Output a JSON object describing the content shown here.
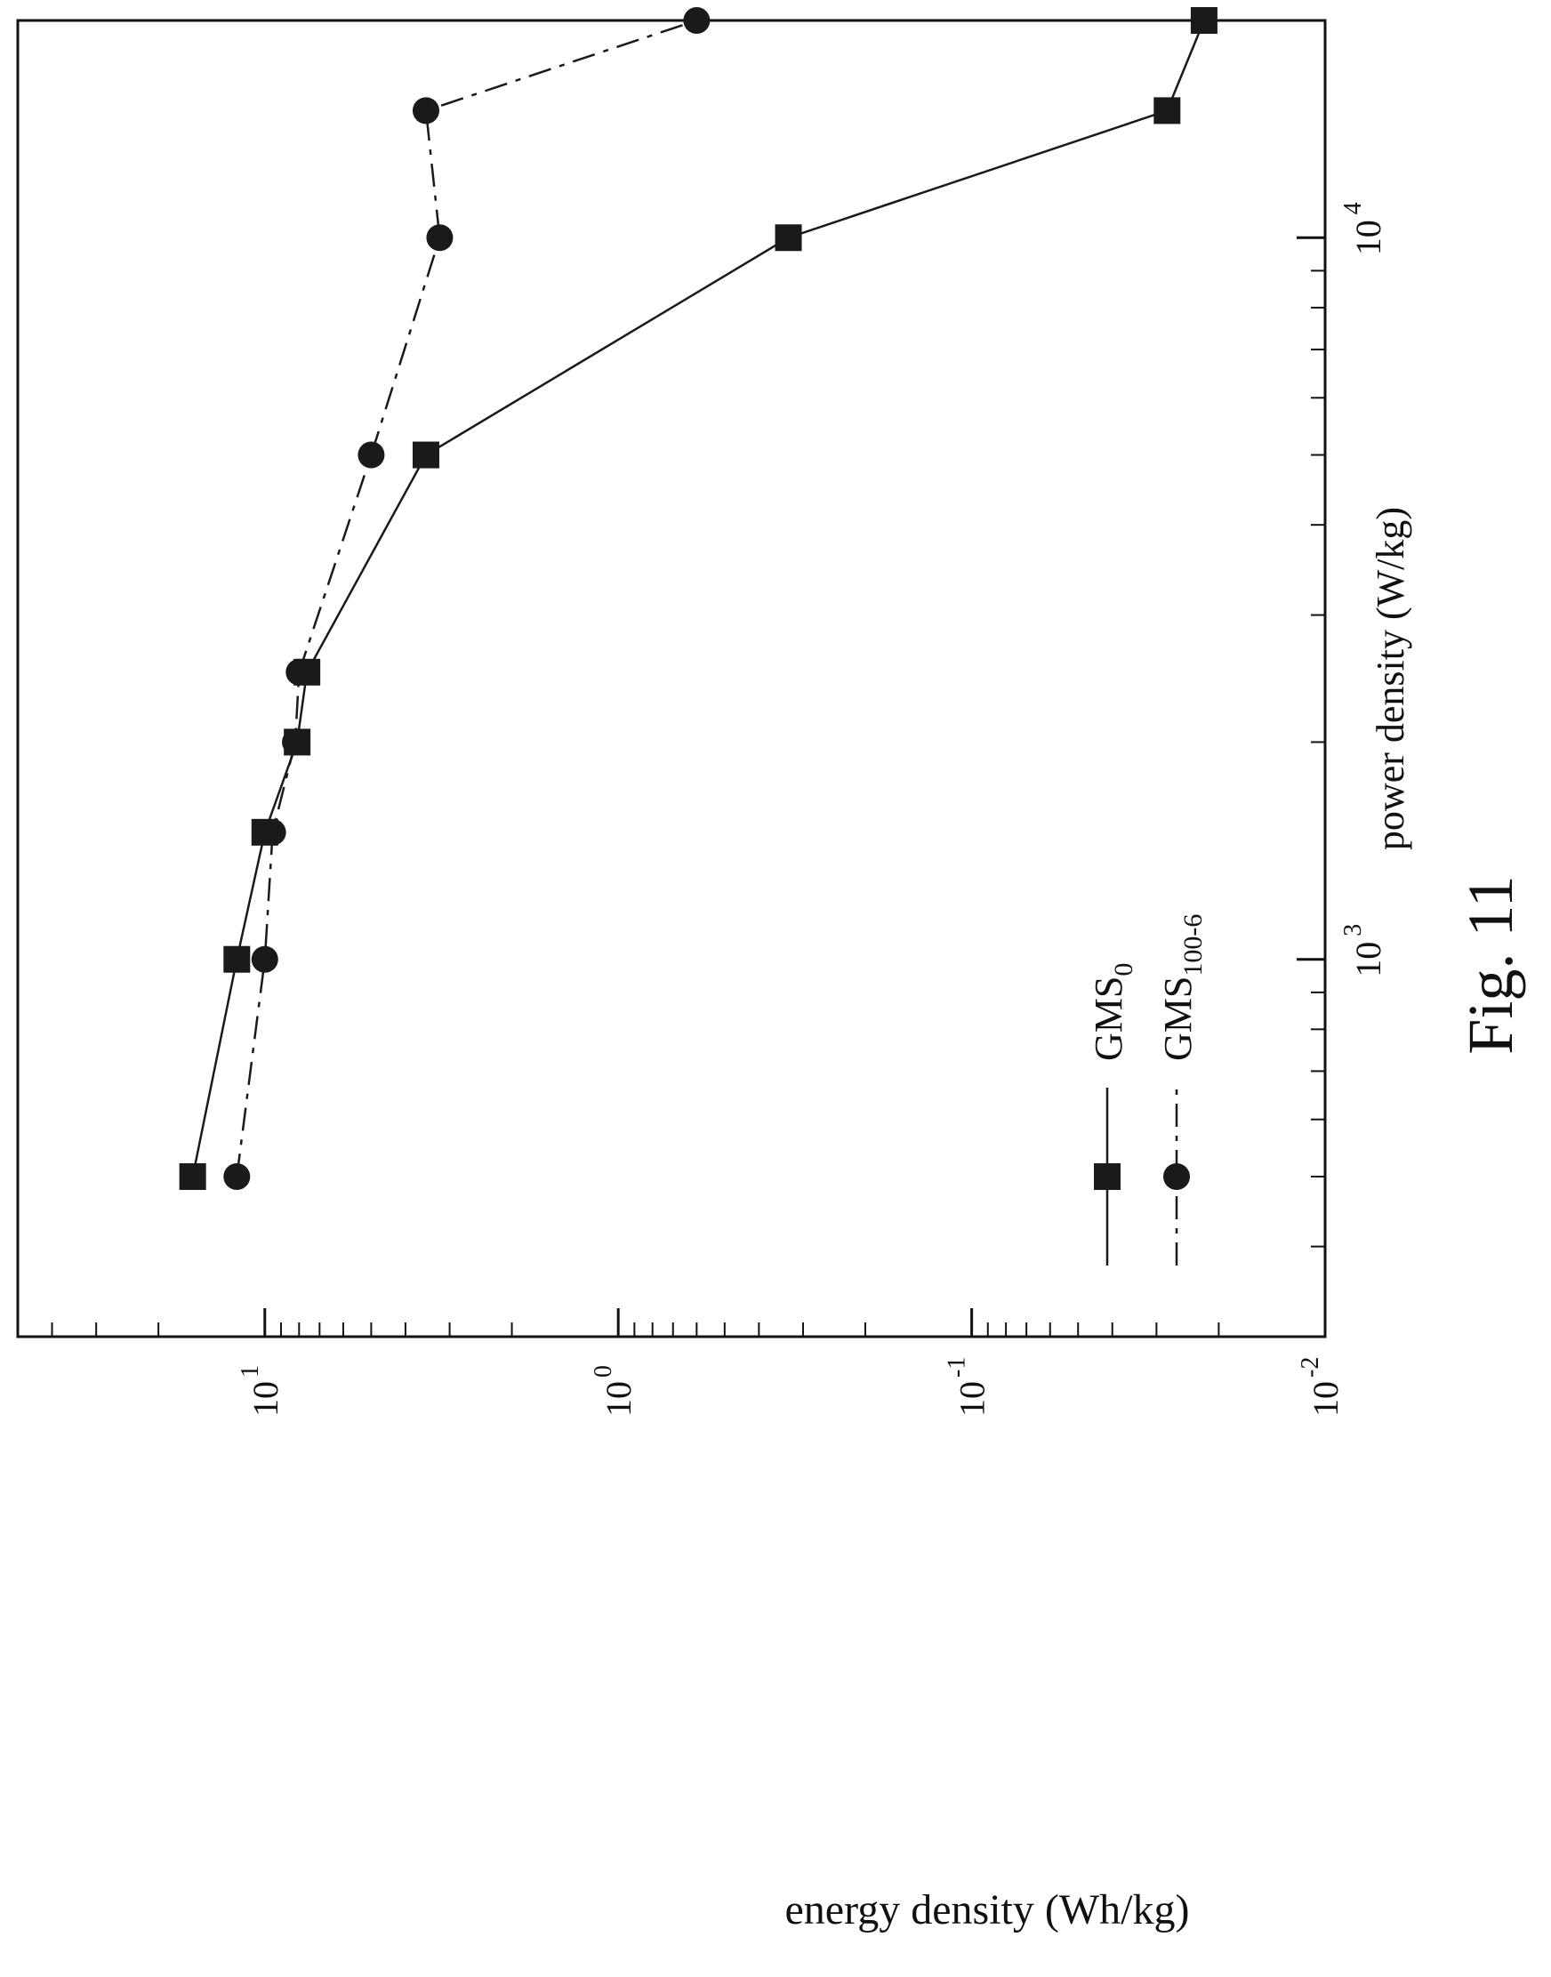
{
  "figure": {
    "caption": "Fig. 11"
  },
  "chart_data": {
    "type": "line",
    "title": "",
    "xlabel": "power density (W/kg)",
    "ylabel": "energy density (Wh/kg)",
    "x_scale": "log",
    "y_scale": "log",
    "xlim": [
      300,
      20000
    ],
    "ylim": [
      0.01,
      50
    ],
    "x_ticks": [
      {
        "value": 1000,
        "base": "10",
        "exp": "3"
      },
      {
        "value": 10000,
        "base": "10",
        "exp": "4"
      }
    ],
    "y_ticks": [
      {
        "value": 10,
        "base": "10",
        "exp": "1"
      },
      {
        "value": 1,
        "base": "10",
        "exp": "0"
      },
      {
        "value": 0.1,
        "base": "10",
        "exp": "-1"
      },
      {
        "value": 0.01,
        "base": "10",
        "exp": "-2"
      }
    ],
    "grid": false,
    "legend_position": "bottom-left",
    "series": [
      {
        "name": "GMS",
        "name_subscript": "0",
        "line_style": "solid",
        "marker": "square",
        "color": "#1a1a1a",
        "x": [
          500,
          1000,
          1500,
          2000,
          2500,
          5000,
          10000,
          15000,
          20000
        ],
        "y": [
          16,
          12,
          10,
          8.1,
          7.6,
          3.5,
          0.33,
          0.028,
          0.022
        ]
      },
      {
        "name": "GMS",
        "name_subscript": "100-6",
        "line_style": "dashdot",
        "marker": "circle",
        "color": "#1a1a1a",
        "x": [
          500,
          1000,
          1500,
          2000,
          2500,
          5000,
          10000,
          15000,
          20000
        ],
        "y": [
          12,
          10,
          9.5,
          8.2,
          8.0,
          5.0,
          3.2,
          3.5,
          0.6
        ]
      }
    ]
  }
}
